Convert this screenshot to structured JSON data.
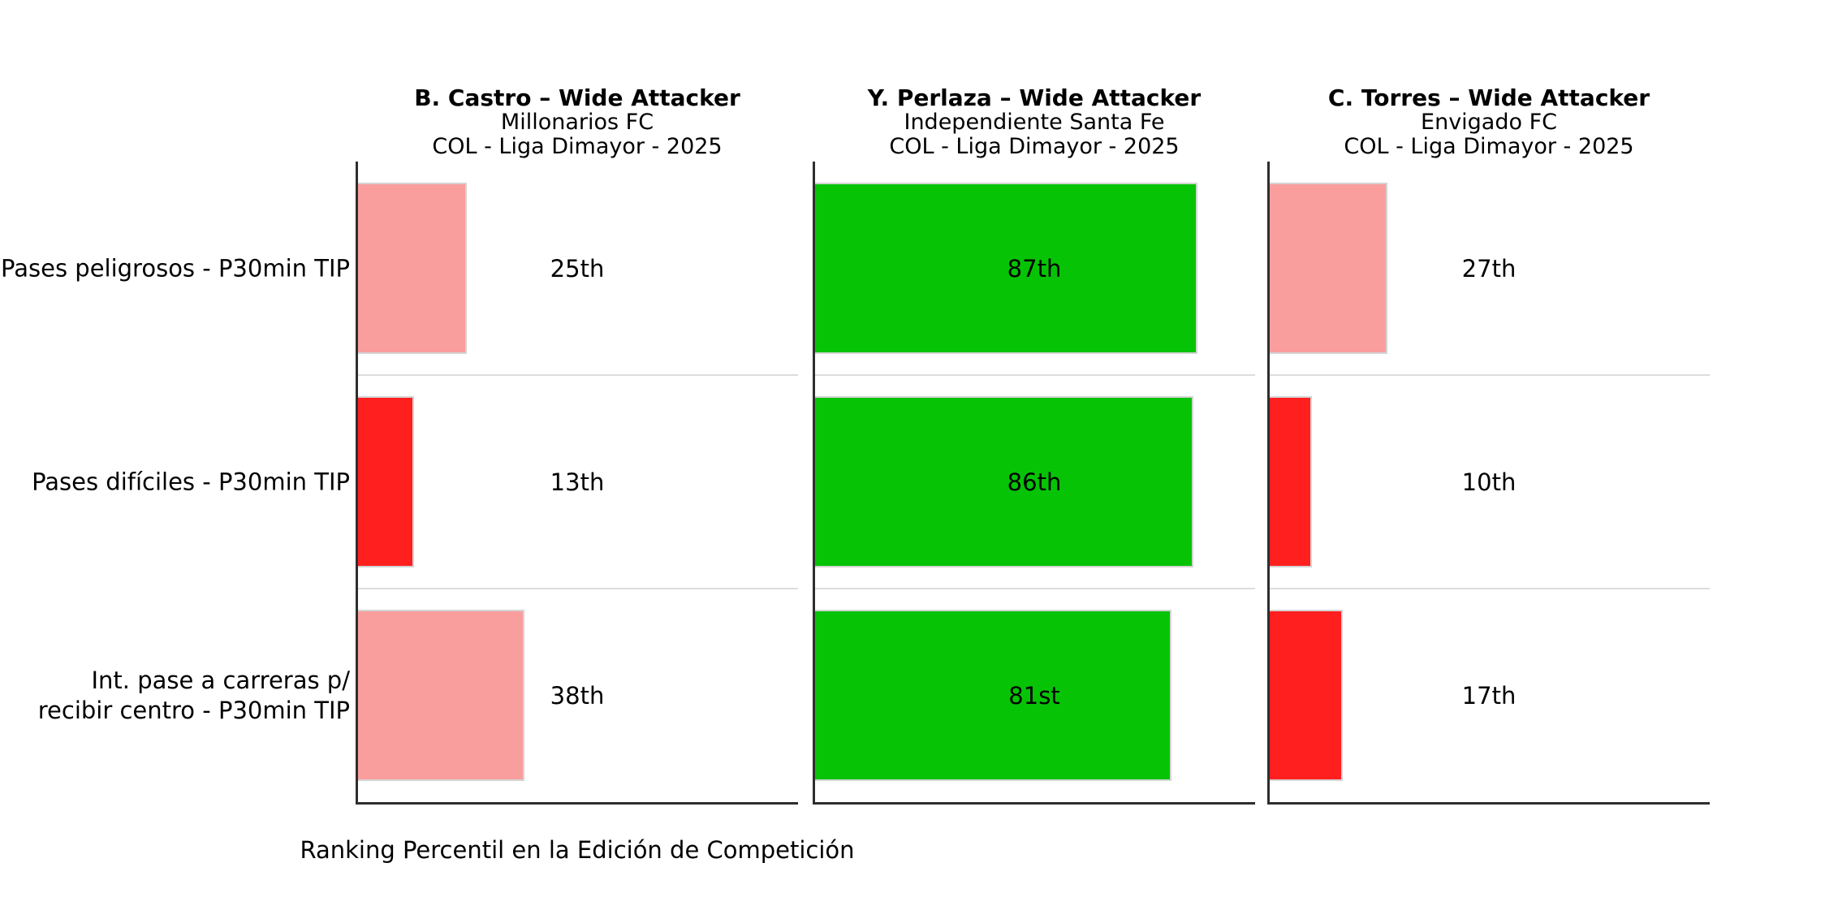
{
  "chart_data": {
    "type": "bar",
    "orientation": "horizontal",
    "xlabel": "Ranking Percentil en la Edición de Competición",
    "xlim": [
      0,
      100
    ],
    "grid": false,
    "legend": false,
    "palette": {
      "pink": "#FA9D9D",
      "red": "#FF1F1F",
      "green": "#06C306"
    },
    "metrics": [
      {
        "lines": [
          "Pases peligrosos - P30min TIP"
        ]
      },
      {
        "lines": [
          "Pases difíciles - P30min TIP"
        ]
      },
      {
        "lines": [
          "Int. pase a carreras p/",
          "recibir centro - P30min TIP"
        ]
      }
    ],
    "players": [
      {
        "title": "B. Castro – Wide Attacker",
        "club": "Millonarios FC",
        "league": "COL - Liga Dimayor - 2025",
        "bars": [
          {
            "value": 25,
            "label": "25th",
            "color": "pink"
          },
          {
            "value": 13,
            "label": "13th",
            "color": "red"
          },
          {
            "value": 38,
            "label": "38th",
            "color": "pink"
          }
        ]
      },
      {
        "title": "Y. Perlaza – Wide Attacker",
        "club": "Independiente Santa Fe",
        "league": "COL - Liga Dimayor - 2025",
        "bars": [
          {
            "value": 87,
            "label": "87th",
            "color": "green"
          },
          {
            "value": 86,
            "label": "86th",
            "color": "green"
          },
          {
            "value": 81,
            "label": "81st",
            "color": "green"
          }
        ]
      },
      {
        "title": "C. Torres – Wide Attacker",
        "club": "Envigado FC",
        "league": "COL - Liga Dimayor - 2025",
        "bars": [
          {
            "value": 27,
            "label": "27th",
            "color": "pink"
          },
          {
            "value": 10,
            "label": "10th",
            "color": "red"
          },
          {
            "value": 17,
            "label": "17th",
            "color": "red"
          }
        ]
      }
    ]
  }
}
